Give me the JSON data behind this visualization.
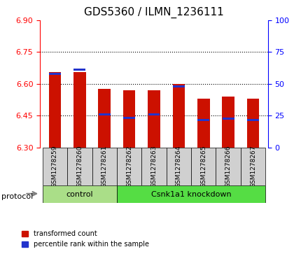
{
  "title": "GDS5360 / ILMN_1236111",
  "samples": [
    "GSM1278259",
    "GSM1278260",
    "GSM1278261",
    "GSM1278262",
    "GSM1278263",
    "GSM1278264",
    "GSM1278265",
    "GSM1278266",
    "GSM1278267"
  ],
  "red_top": [
    6.655,
    6.655,
    6.575,
    6.568,
    6.568,
    6.6,
    6.53,
    6.54,
    6.53
  ],
  "red_bottom": [
    6.3,
    6.3,
    6.3,
    6.3,
    6.3,
    6.3,
    6.3,
    6.3,
    6.3
  ],
  "blue_values": [
    6.648,
    6.668,
    6.455,
    6.44,
    6.455,
    6.587,
    6.43,
    6.435,
    6.428
  ],
  "ylim_left": [
    6.3,
    6.9
  ],
  "ylim_right": [
    0,
    100
  ],
  "yticks_left": [
    6.3,
    6.45,
    6.6,
    6.75,
    6.9
  ],
  "yticks_right": [
    0,
    25,
    50,
    75,
    100
  ],
  "grid_lines": [
    6.45,
    6.6,
    6.75
  ],
  "control_samples": 3,
  "control_label": "control",
  "knockdown_label": "Csnk1a1 knockdown",
  "protocol_label": "protocol",
  "legend_red": "transformed count",
  "legend_blue": "percentile rank within the sample",
  "bar_color": "#cc1100",
  "blue_color": "#2233cc",
  "control_bg": "#aade88",
  "knockdown_bg": "#55dd44",
  "sample_bg": "#d0d0d0",
  "bar_width": 0.5
}
